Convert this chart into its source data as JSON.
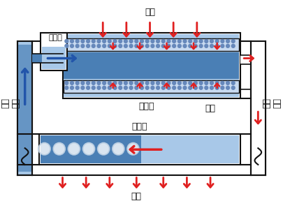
{
  "title": "",
  "bg_color": "#ffffff",
  "text_color": "#000000",
  "red_arrow_color": "#e02020",
  "blue_color": "#4a7fb5",
  "light_blue": "#a8c8e8",
  "dark_blue": "#2255aa",
  "labels": {
    "absorb_heat": "吸热",
    "release_heat": "放热",
    "evaporator": "蒸发器",
    "wick": "管芯",
    "condenser": "冷凝器",
    "liquid_channel": "液体\n通道",
    "gas_channel": "气体\n通道",
    "reservoir": "储液腔"
  }
}
